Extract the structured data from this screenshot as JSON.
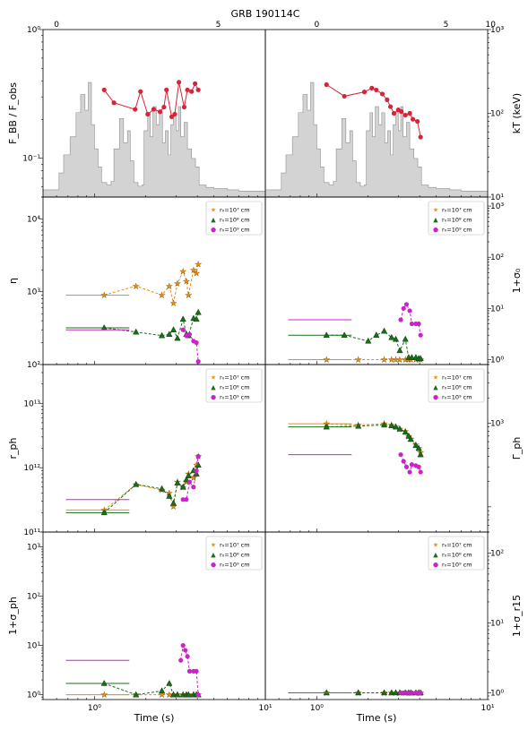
{
  "figure": {
    "title": "GRB 190114C",
    "xlabel_left": "Time (s)",
    "xlabel_right": "Time (s)"
  },
  "chart_data": [
    {
      "type": "line",
      "panel": "F_BB/F_obs",
      "title": "GRB 190114C",
      "ylabel": "F_BB / F_obs",
      "xscale": "log",
      "xlim": [
        0.5,
        10
      ],
      "yscale": "log",
      "ylim": [
        0.05,
        1.0
      ],
      "yticks": [
        "10⁻¹",
        "10⁰"
      ],
      "top_axis": {
        "scale": "linear",
        "ticks": [
          "0",
          "5"
        ]
      },
      "light_curve": "grey histogram (count rate, arbitrary units)",
      "series": [
        {
          "name": "F_BB/F_obs",
          "color": "#d6243a",
          "x": [
            1.14,
            1.3,
            1.73,
            1.86,
            2.05,
            2.22,
            2.42,
            2.55,
            2.64,
            2.83,
            2.95,
            3.12,
            3.35,
            3.5,
            3.7,
            3.88,
            4.05
          ],
          "y": [
            0.34,
            0.27,
            0.24,
            0.33,
            0.22,
            0.24,
            0.23,
            0.25,
            0.34,
            0.21,
            0.22,
            0.39,
            0.25,
            0.34,
            0.33,
            0.38,
            0.34
          ]
        }
      ]
    },
    {
      "type": "line",
      "panel": "kT",
      "ylabel": "kT (keV)",
      "xscale": "log",
      "xlim": [
        0.5,
        10
      ],
      "yscale": "log",
      "ylim": [
        10,
        1000
      ],
      "yticks": [
        "10¹",
        "10²",
        "10³"
      ],
      "top_axis": {
        "scale": "linear",
        "ticks": [
          "0",
          "5",
          "10"
        ]
      },
      "series": [
        {
          "name": "kT",
          "color": "#d6243a",
          "x": [
            1.14,
            1.45,
            1.9,
            2.1,
            2.23,
            2.42,
            2.58,
            2.7,
            2.83,
            3.0,
            3.12,
            3.3,
            3.5,
            3.65,
            3.88,
            4.05
          ],
          "y": [
            220,
            160,
            180,
            200,
            190,
            170,
            145,
            120,
            100,
            110,
            105,
            95,
            100,
            85,
            80,
            52
          ]
        }
      ]
    },
    {
      "type": "scatter",
      "panel": "eta",
      "ylabel": "η",
      "xscale": "log",
      "xlim": [
        0.5,
        10
      ],
      "yscale": "log",
      "ylim": [
        100,
        20000
      ],
      "yticks": [
        "10²",
        "10³",
        "10⁴"
      ],
      "legend": "upper-right",
      "series": [
        {
          "name": "r₀=10⁷ cm",
          "color": "#e8900c",
          "marker": "star",
          "x": [
            1.14,
            1.75,
            2.48,
            2.74,
            2.9,
            3.06,
            3.3,
            3.45,
            3.55,
            3.8,
            3.95,
            4.05
          ],
          "y": [
            900,
            1200,
            900,
            1200,
            700,
            1300,
            1900,
            1400,
            900,
            2000,
            1800,
            2400
          ]
        },
        {
          "name": "r₀=10⁸ cm",
          "color": "#1a6e1a",
          "marker": "triangle",
          "x": [
            1.14,
            1.75,
            2.48,
            2.74,
            2.9,
            3.06,
            3.3,
            3.45,
            3.55,
            3.8,
            3.95,
            4.05
          ],
          "y": [
            320,
            280,
            250,
            260,
            300,
            230,
            420,
            260,
            250,
            430,
            420,
            520
          ]
        },
        {
          "name": "r₀=10⁹ cm",
          "color": "#cc22cc",
          "marker": "circle",
          "x": [
            3.3,
            3.45,
            3.6,
            3.8,
            3.95,
            4.05
          ],
          "y": [
            300,
            250,
            260,
            210,
            200,
            110
          ]
        }
      ]
    },
    {
      "type": "scatter",
      "panel": "1+sigma_0",
      "ylabel": "1+σ₀",
      "xscale": "log",
      "xlim": [
        0.5,
        10
      ],
      "yscale": "log",
      "ylim": [
        0.8,
        1500
      ],
      "yticks": [
        "10⁰",
        "10¹",
        "10²",
        "10³"
      ],
      "legend": "upper-right",
      "series": [
        {
          "name": "r₀=10⁷ cm",
          "color": "#e8900c",
          "marker": "star",
          "x": [
            1.14,
            1.75,
            2.48,
            2.74,
            2.9,
            3.06,
            3.3,
            3.45,
            3.55,
            3.8,
            3.95,
            4.05
          ],
          "y": [
            1,
            1,
            1,
            1,
            1,
            1,
            1,
            1,
            1,
            1,
            1,
            1
          ]
        },
        {
          "name": "r₀=10⁸ cm",
          "color": "#1a6e1a",
          "marker": "triangle",
          "x": [
            1.14,
            1.45,
            2.0,
            2.23,
            2.48,
            2.74,
            2.9,
            3.06,
            3.3,
            3.45,
            3.6,
            3.8,
            3.95,
            4.05
          ],
          "y": [
            3.0,
            3.0,
            2.3,
            3.0,
            3.6,
            2.7,
            2.5,
            1.5,
            2.5,
            1.1,
            1.1,
            1.1,
            1.05,
            1.05
          ]
        },
        {
          "name": "r₀=10⁹ cm",
          "color": "#cc22cc",
          "marker": "circle",
          "x": [
            3.1,
            3.22,
            3.35,
            3.5,
            3.6,
            3.8,
            3.95,
            4.05
          ],
          "y": [
            6,
            10,
            12,
            9,
            5,
            5,
            5,
            3
          ]
        }
      ]
    },
    {
      "type": "scatter",
      "panel": "r_ph",
      "ylabel": "r_ph",
      "xscale": "log",
      "xlim": [
        0.5,
        10
      ],
      "yscale": "log",
      "ylim": [
        100000000000.0,
        40000000000000.0
      ],
      "yticks": [
        "10¹¹",
        "10¹²",
        "10¹³"
      ],
      "legend": "upper-right",
      "series": [
        {
          "name": "r₀=10⁷ cm",
          "color": "#e8900c",
          "marker": "star",
          "x": [
            1.14,
            1.75,
            2.48,
            2.74,
            2.9,
            3.06,
            3.3,
            3.45,
            3.55,
            3.8,
            3.95,
            4.05
          ],
          "y": [
            220000000000.0,
            550000000000.0,
            450000000000.0,
            400000000000.0,
            250000000000.0,
            600000000000.0,
            500000000000.0,
            600000000000.0,
            800000000000.0,
            700000000000.0,
            1100000000000.0,
            1500000000000.0
          ]
        },
        {
          "name": "r₀=10⁸ cm",
          "color": "#1a6e1a",
          "marker": "triangle",
          "x": [
            1.14,
            1.75,
            2.48,
            2.74,
            2.9,
            3.06,
            3.3,
            3.45,
            3.55,
            3.8,
            3.95,
            4.05
          ],
          "y": [
            200000000000.0,
            550000000000.0,
            470000000000.0,
            360000000000.0,
            280000000000.0,
            580000000000.0,
            500000000000.0,
            650000000000.0,
            750000000000.0,
            900000000000.0,
            800000000000.0,
            1100000000000.0
          ]
        },
        {
          "name": "r₀=10⁹ cm",
          "color": "#cc22cc",
          "marker": "circle",
          "x": [
            3.3,
            3.45,
            3.6,
            3.8,
            3.95,
            4.05
          ],
          "y": [
            320000000000.0,
            320000000000.0,
            600000000000.0,
            500000000000.0,
            900000000000.0,
            1500000000000.0
          ]
        }
      ]
    },
    {
      "type": "scatter",
      "panel": "Gamma_ph",
      "ylabel": "Γ_ph",
      "xscale": "log",
      "xlim": [
        0.5,
        10
      ],
      "yscale": "log",
      "ylim": [
        50,
        5000
      ],
      "yticks": [
        "10³"
      ],
      "legend": "upper-right",
      "series": [
        {
          "name": "r₀=10⁷ cm",
          "color": "#e8900c",
          "marker": "star",
          "x": [
            1.14,
            1.75,
            2.48,
            2.74,
            2.9,
            3.06,
            3.3,
            3.45,
            3.55,
            3.8,
            3.95,
            4.05
          ],
          "y": [
            980,
            950,
            980,
            950,
            900,
            850,
            800,
            700,
            650,
            550,
            500,
            450
          ]
        },
        {
          "name": "r₀=10⁸ cm",
          "color": "#1a6e1a",
          "marker": "triangle",
          "x": [
            1.14,
            1.75,
            2.48,
            2.74,
            2.9,
            3.06,
            3.3,
            3.45,
            3.55,
            3.8,
            3.95,
            4.05
          ],
          "y": [
            900,
            920,
            950,
            930,
            900,
            850,
            780,
            700,
            640,
            540,
            500,
            420
          ]
        },
        {
          "name": "r₀=10⁹ cm",
          "color": "#cc22cc",
          "marker": "circle",
          "x": [
            3.1,
            3.22,
            3.35,
            3.5,
            3.6,
            3.8,
            3.95,
            4.05
          ],
          "y": [
            420,
            350,
            300,
            260,
            320,
            310,
            300,
            260
          ]
        }
      ]
    },
    {
      "type": "scatter",
      "panel": "1+sigma_ph",
      "ylabel": "1+σ_ph",
      "xscale": "log",
      "xlim": [
        0.5,
        10
      ],
      "yscale": "log",
      "ylim": [
        0.8,
        2000
      ],
      "yticks": [
        "10⁰",
        "10¹",
        "10²",
        "10³"
      ],
      "legend": "upper-right",
      "series": [
        {
          "name": "r₀=10⁷ cm",
          "color": "#e8900c",
          "marker": "star",
          "x": [
            1.14,
            1.75,
            2.48,
            2.74,
            2.9,
            3.06,
            3.3,
            3.45,
            3.55,
            3.8,
            3.95,
            4.05
          ],
          "y": [
            1,
            1,
            1,
            1,
            1,
            1,
            1,
            1,
            1,
            1,
            1,
            1
          ]
        },
        {
          "name": "r₀=10⁸ cm",
          "color": "#1a6e1a",
          "marker": "triangle",
          "x": [
            1.14,
            1.75,
            2.48,
            2.74,
            2.9,
            3.06,
            3.3,
            3.45,
            3.55,
            3.8,
            3.95,
            4.05
          ],
          "y": [
            1.7,
            1.0,
            1.2,
            1.7,
            1.0,
            1.0,
            1.0,
            1.0,
            1.0,
            1.0,
            1.0,
            1.0
          ]
        },
        {
          "name": "r₀=10⁹ cm",
          "color": "#cc22cc",
          "marker": "circle",
          "x": [
            3.2,
            3.3,
            3.4,
            3.5,
            3.6,
            3.8,
            3.95,
            4.05
          ],
          "y": [
            5,
            10,
            8,
            6,
            3,
            3,
            3,
            1.0
          ]
        }
      ]
    },
    {
      "type": "scatter",
      "panel": "1+sigma_r15",
      "ylabel": "1+σ_r15",
      "xscale": "log",
      "xlim": [
        0.5,
        10
      ],
      "yscale": "log",
      "ylim": [
        0.8,
        200
      ],
      "yticks": [
        "10⁰",
        "10¹",
        "10²"
      ],
      "legend": "upper-right",
      "series": [
        {
          "name": "r₀=10⁷ cm",
          "color": "#e8900c",
          "marker": "star",
          "x": [
            1.14,
            1.75,
            2.48,
            2.74,
            2.9,
            3.06,
            3.3,
            3.45,
            3.55,
            3.8,
            3.95,
            4.05
          ],
          "y": [
            1,
            1,
            1,
            1,
            1,
            1,
            1,
            1,
            1,
            1,
            1,
            1
          ]
        },
        {
          "name": "r₀=10⁸ cm",
          "color": "#1a6e1a",
          "marker": "triangle",
          "x": [
            1.14,
            1.75,
            2.48,
            2.74,
            2.9,
            3.06,
            3.3,
            3.45,
            3.55,
            3.8,
            3.95,
            4.05
          ],
          "y": [
            1,
            1,
            1,
            1,
            1,
            1,
            1,
            1,
            1,
            1,
            1,
            1
          ]
        },
        {
          "name": "r₀=10⁹ cm",
          "color": "#cc22cc",
          "marker": "circle",
          "x": [
            3.1,
            3.22,
            3.35,
            3.5,
            3.6,
            3.8,
            3.95,
            4.05
          ],
          "y": [
            1,
            1,
            1,
            1,
            1,
            1,
            1,
            1
          ]
        }
      ]
    }
  ]
}
